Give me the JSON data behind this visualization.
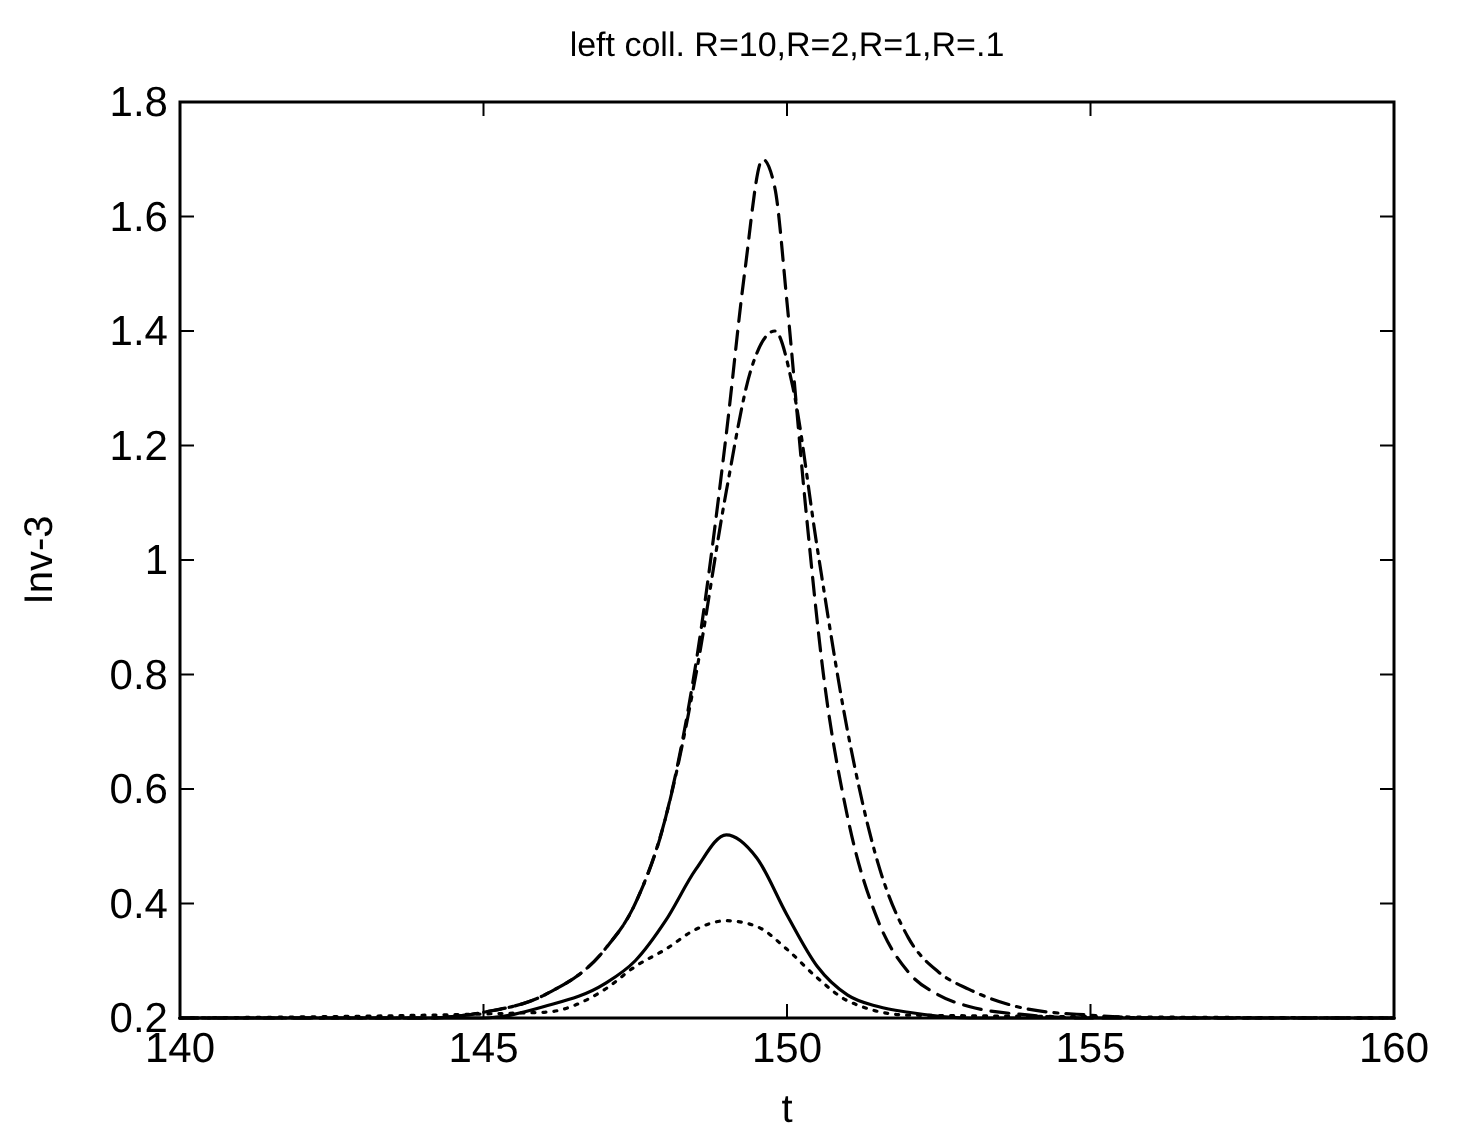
{
  "chart_data": {
    "type": "line",
    "title": "left coll. R=10,R=2,R=1,R=.1",
    "xlabel": "t",
    "ylabel": "Inv-3",
    "xlim": [
      140,
      160
    ],
    "xticks": [
      140,
      145,
      150,
      155,
      160
    ],
    "ylim": [
      0.2,
      1.8
    ],
    "yticks": [
      0.2,
      0.4,
      0.6,
      0.8,
      1,
      1.2,
      1.4,
      1.6,
      1.8
    ],
    "grid": false,
    "series": [
      {
        "color": "#000000",
        "line_style": "dashed",
        "x": [
          140,
          144,
          145,
          146,
          147,
          147.5,
          148,
          148.5,
          149,
          149.3,
          149.6,
          149.8,
          150,
          150.3,
          150.6,
          151,
          151.5,
          152,
          152.5,
          153,
          154,
          155,
          160
        ],
        "values": [
          0.2,
          0.2,
          0.21,
          0.24,
          0.32,
          0.4,
          0.55,
          0.82,
          1.22,
          1.5,
          1.7,
          1.65,
          1.45,
          1.1,
          0.8,
          0.55,
          0.37,
          0.28,
          0.24,
          0.22,
          0.205,
          0.2,
          0.2
        ]
      },
      {
        "color": "#000000",
        "line_style": "dashdot",
        "x": [
          140,
          144,
          145,
          146,
          147,
          147.5,
          148,
          148.5,
          149,
          149.4,
          149.8,
          150.1,
          150.5,
          151,
          151.5,
          152,
          152.5,
          153,
          154,
          155,
          156,
          160
        ],
        "values": [
          0.2,
          0.2,
          0.21,
          0.24,
          0.32,
          0.4,
          0.55,
          0.8,
          1.12,
          1.33,
          1.4,
          1.3,
          1.02,
          0.7,
          0.47,
          0.34,
          0.28,
          0.25,
          0.215,
          0.205,
          0.2,
          0.2
        ]
      },
      {
        "color": "#000000",
        "line_style": "solid",
        "x": [
          140,
          145,
          146,
          147,
          147.5,
          148,
          148.5,
          149,
          149.5,
          150,
          150.5,
          151,
          151.5,
          152,
          153,
          160
        ],
        "values": [
          0.2,
          0.2,
          0.22,
          0.26,
          0.3,
          0.37,
          0.46,
          0.52,
          0.48,
          0.38,
          0.29,
          0.24,
          0.22,
          0.21,
          0.2,
          0.2
        ]
      },
      {
        "color": "#000000",
        "line_style": "dotted",
        "x": [
          140,
          146,
          147,
          147.5,
          148,
          148.5,
          149,
          149.5,
          150,
          150.5,
          151,
          152,
          160
        ],
        "values": [
          0.2,
          0.21,
          0.25,
          0.29,
          0.32,
          0.355,
          0.37,
          0.36,
          0.32,
          0.27,
          0.23,
          0.205,
          0.2
        ]
      }
    ]
  }
}
